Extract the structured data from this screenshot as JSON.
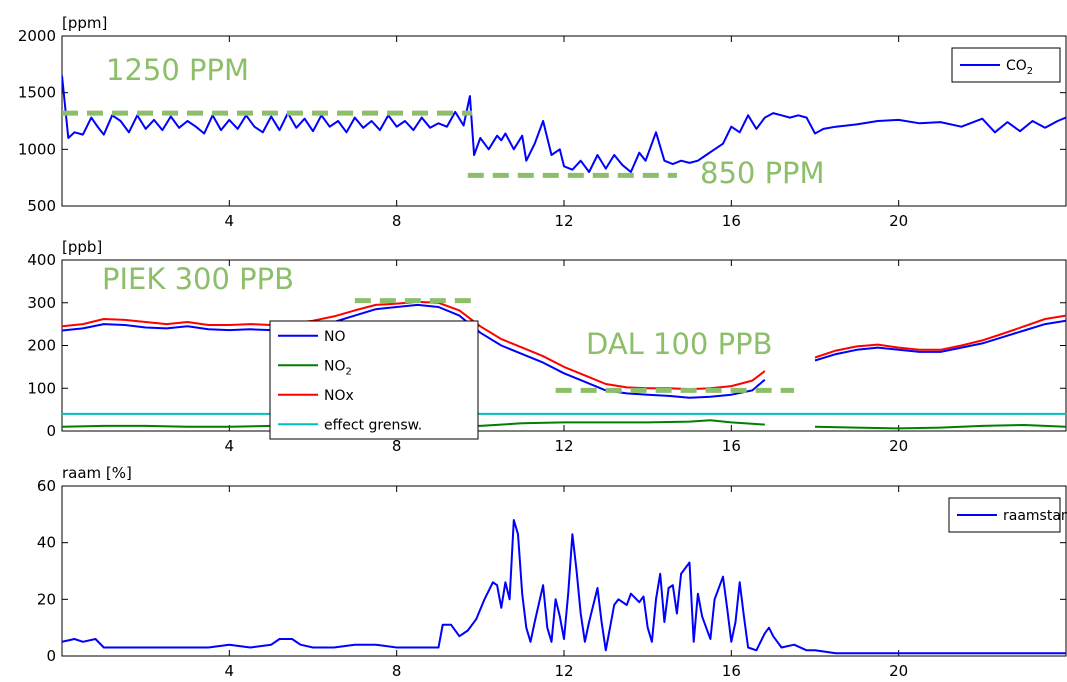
{
  "chart_data": [
    {
      "type": "line",
      "ylabel": "[ppm]",
      "xlim": [
        0,
        24
      ],
      "ylim": [
        500,
        2000
      ],
      "xticks": [
        4,
        8,
        12,
        16,
        20
      ],
      "yticks": [
        500,
        1000,
        1500,
        2000
      ],
      "grid": false,
      "legend": "top-right",
      "series": [
        {
          "name": "CO2",
          "color": "#0000ff",
          "x": [
            0,
            0.15,
            0.3,
            0.5,
            0.7,
            0.85,
            1.0,
            1.2,
            1.4,
            1.6,
            1.8,
            2.0,
            2.2,
            2.4,
            2.6,
            2.8,
            3.0,
            3.2,
            3.4,
            3.6,
            3.8,
            4.0,
            4.2,
            4.4,
            4.6,
            4.8,
            5.0,
            5.2,
            5.4,
            5.6,
            5.8,
            6.0,
            6.2,
            6.4,
            6.6,
            6.8,
            7.0,
            7.2,
            7.4,
            7.6,
            7.8,
            8.0,
            8.2,
            8.4,
            8.6,
            8.8,
            9.0,
            9.2,
            9.4,
            9.6,
            9.75,
            9.85,
            10.0,
            10.2,
            10.4,
            10.5,
            10.6,
            10.8,
            11.0,
            11.1,
            11.3,
            11.5,
            11.7,
            11.9,
            12.0,
            12.2,
            12.4,
            12.6,
            12.8,
            13.0,
            13.2,
            13.4,
            13.6,
            13.8,
            13.95,
            14.2,
            14.4,
            14.6,
            14.8,
            15.0,
            15.2,
            15.4,
            15.6,
            15.8,
            16.0,
            16.2,
            16.4,
            16.6,
            16.8,
            17.0,
            17.2,
            17.4,
            17.6,
            17.8,
            18.0,
            18.2,
            18.5,
            19.0,
            19.5,
            20.0,
            20.5,
            21.0,
            21.5,
            22.0,
            22.3,
            22.6,
            22.9,
            23.2,
            23.5,
            23.8,
            24.0
          ],
          "y": [
            1650,
            1100,
            1150,
            1130,
            1280,
            1200,
            1130,
            1300,
            1250,
            1150,
            1300,
            1180,
            1260,
            1170,
            1290,
            1190,
            1250,
            1200,
            1140,
            1300,
            1170,
            1260,
            1180,
            1300,
            1200,
            1150,
            1290,
            1170,
            1320,
            1190,
            1270,
            1160,
            1300,
            1200,
            1250,
            1150,
            1280,
            1190,
            1250,
            1170,
            1300,
            1200,
            1250,
            1170,
            1280,
            1190,
            1230,
            1200,
            1330,
            1210,
            1470,
            950,
            1100,
            1000,
            1120,
            1080,
            1140,
            1000,
            1120,
            900,
            1050,
            1250,
            950,
            1000,
            850,
            820,
            900,
            800,
            950,
            830,
            950,
            860,
            800,
            970,
            900,
            1150,
            900,
            870,
            900,
            880,
            900,
            950,
            1000,
            1050,
            1200,
            1150,
            1300,
            1180,
            1280,
            1320,
            1300,
            1280,
            1300,
            1280,
            1140,
            1180,
            1200,
            1220,
            1250,
            1260,
            1230,
            1240,
            1200,
            1270,
            1150,
            1240,
            1160,
            1250,
            1190,
            1250,
            1280
          ]
        }
      ],
      "annotations": [
        {
          "text": "1250 PPM",
          "value": 1320,
          "x_range": [
            0,
            9.8
          ]
        },
        {
          "text": "850 PPM",
          "value": 770,
          "x_range": [
            9.7,
            14.7
          ]
        }
      ]
    },
    {
      "type": "line",
      "ylabel": "[ppb]",
      "xlim": [
        0,
        24
      ],
      "ylim": [
        0,
        400
      ],
      "xticks": [
        4,
        8,
        12,
        16,
        20
      ],
      "yticks": [
        0,
        100,
        200,
        300,
        400
      ],
      "grid": false,
      "legend": "left-center",
      "series": [
        {
          "name": "NO",
          "color": "#0000ff",
          "x": [
            0,
            0.5,
            1.0,
            1.5,
            2.0,
            2.5,
            3.0,
            3.5,
            4.0,
            4.5,
            5.0,
            5.5,
            6.0,
            6.5,
            7.0,
            7.5,
            8.0,
            8.5,
            9.0,
            9.5,
            10.0,
            10.5,
            11.0,
            11.5,
            12.0,
            12.5,
            13.0,
            13.5,
            14.0,
            14.5,
            15.0,
            15.5,
            16.0,
            16.5,
            16.8,
            null,
            18.0,
            18.5,
            19.0,
            19.5,
            20.0,
            20.5,
            21.0,
            21.5,
            22.0,
            22.5,
            23.0,
            23.5,
            24.0
          ],
          "y": [
            235,
            240,
            250,
            248,
            242,
            240,
            245,
            238,
            236,
            238,
            236,
            240,
            245,
            255,
            270,
            285,
            290,
            295,
            290,
            270,
            230,
            200,
            180,
            160,
            135,
            115,
            95,
            88,
            85,
            82,
            78,
            80,
            85,
            95,
            120,
            null,
            165,
            180,
            190,
            195,
            190,
            185,
            185,
            195,
            205,
            220,
            235,
            250,
            258
          ]
        },
        {
          "name": "NO2",
          "color": "#007f00",
          "x": [
            0,
            1.0,
            2.0,
            3.0,
            4.0,
            5.0,
            6.0,
            7.0,
            8.0,
            9.0,
            10.0,
            11.0,
            12.0,
            13.0,
            14.0,
            15.0,
            15.5,
            16.0,
            16.8,
            null,
            18.0,
            19.0,
            20.0,
            21.0,
            22.0,
            23.0,
            24.0
          ],
          "y": [
            10,
            12,
            12,
            10,
            10,
            12,
            12,
            12,
            15,
            15,
            12,
            18,
            20,
            20,
            20,
            22,
            25,
            20,
            15,
            null,
            10,
            8,
            6,
            8,
            12,
            14,
            10
          ]
        },
        {
          "name": "NOx",
          "color": "#ff0000",
          "x": [
            0,
            0.5,
            1.0,
            1.5,
            2.0,
            2.5,
            3.0,
            3.5,
            4.0,
            4.5,
            5.0,
            5.5,
            6.0,
            6.5,
            7.0,
            7.5,
            8.0,
            8.5,
            9.0,
            9.5,
            10.0,
            10.5,
            11.0,
            11.5,
            12.0,
            12.5,
            13.0,
            13.5,
            14.0,
            14.5,
            15.0,
            15.5,
            16.0,
            16.5,
            16.8,
            null,
            18.0,
            18.5,
            19.0,
            19.5,
            20.0,
            20.5,
            21.0,
            21.5,
            22.0,
            22.5,
            23.0,
            23.5,
            24.0
          ],
          "y": [
            245,
            250,
            262,
            260,
            255,
            250,
            255,
            248,
            248,
            250,
            248,
            252,
            258,
            268,
            282,
            295,
            298,
            302,
            300,
            282,
            245,
            215,
            195,
            175,
            150,
            130,
            110,
            102,
            100,
            100,
            98,
            100,
            105,
            118,
            140,
            null,
            172,
            188,
            198,
            202,
            195,
            190,
            190,
            200,
            212,
            228,
            245,
            262,
            270
          ]
        },
        {
          "name": "effect grensw.",
          "color": "#00bfbf",
          "x": [
            0,
            24
          ],
          "y": [
            40,
            40
          ]
        }
      ],
      "annotations": [
        {
          "text": "PIEK 300 PPB",
          "value": 305,
          "x_range": [
            7.0,
            9.8
          ]
        },
        {
          "text": "DAL 100 PPB",
          "value": 95,
          "x_range": [
            11.8,
            17.5
          ]
        }
      ]
    },
    {
      "type": "line",
      "ylabel": "raam [%]",
      "xlim": [
        0,
        24
      ],
      "ylim": [
        0,
        60
      ],
      "xticks": [
        4,
        8,
        12,
        16,
        20
      ],
      "yticks": [
        0,
        20,
        40,
        60
      ],
      "grid": false,
      "legend": "top-right",
      "series": [
        {
          "name": "raamstand",
          "color": "#0000ff",
          "x": [
            0,
            0.3,
            0.5,
            0.8,
            1.0,
            1.5,
            2.0,
            2.5,
            3.0,
            3.5,
            4.0,
            4.5,
            5.0,
            5.2,
            5.5,
            5.7,
            6.0,
            6.5,
            7.0,
            7.5,
            8.0,
            8.5,
            9.0,
            9.1,
            9.3,
            9.5,
            9.7,
            9.9,
            10.1,
            10.3,
            10.4,
            10.5,
            10.6,
            10.7,
            10.8,
            10.9,
            11.0,
            11.1,
            11.2,
            11.3,
            11.5,
            11.6,
            11.7,
            11.8,
            11.9,
            12.0,
            12.1,
            12.2,
            12.3,
            12.4,
            12.5,
            12.6,
            12.8,
            12.9,
            13.0,
            13.2,
            13.3,
            13.5,
            13.6,
            13.8,
            13.9,
            14.0,
            14.1,
            14.2,
            14.3,
            14.4,
            14.5,
            14.6,
            14.7,
            14.8,
            15.0,
            15.1,
            15.2,
            15.3,
            15.4,
            15.5,
            15.6,
            15.8,
            15.9,
            16.0,
            16.1,
            16.2,
            16.3,
            16.4,
            16.6,
            16.8,
            16.9,
            17.0,
            17.2,
            17.5,
            17.8,
            18.0,
            18.5,
            19.0,
            19.5,
            20.0,
            21.0,
            22.0,
            23.0,
            24.0
          ],
          "y": [
            5,
            6,
            5,
            6,
            3,
            3,
            3,
            3,
            3,
            3,
            4,
            3,
            4,
            6,
            6,
            4,
            3,
            3,
            4,
            4,
            3,
            3,
            3,
            11,
            11,
            7,
            9,
            13,
            20,
            26,
            25,
            17,
            26,
            20,
            48,
            43,
            22,
            10,
            5,
            12,
            25,
            10,
            5,
            20,
            14,
            6,
            22,
            43,
            30,
            15,
            5,
            12,
            24,
            12,
            2,
            18,
            20,
            18,
            22,
            19,
            21,
            10,
            5,
            20,
            29,
            12,
            24,
            25,
            15,
            29,
            33,
            5,
            22,
            14,
            10,
            6,
            20,
            28,
            17,
            5,
            12,
            26,
            14,
            3,
            2,
            8,
            10,
            7,
            3,
            4,
            2,
            2,
            1,
            1,
            1,
            1,
            1,
            1,
            1,
            1
          ]
        }
      ],
      "annotations": []
    }
  ]
}
